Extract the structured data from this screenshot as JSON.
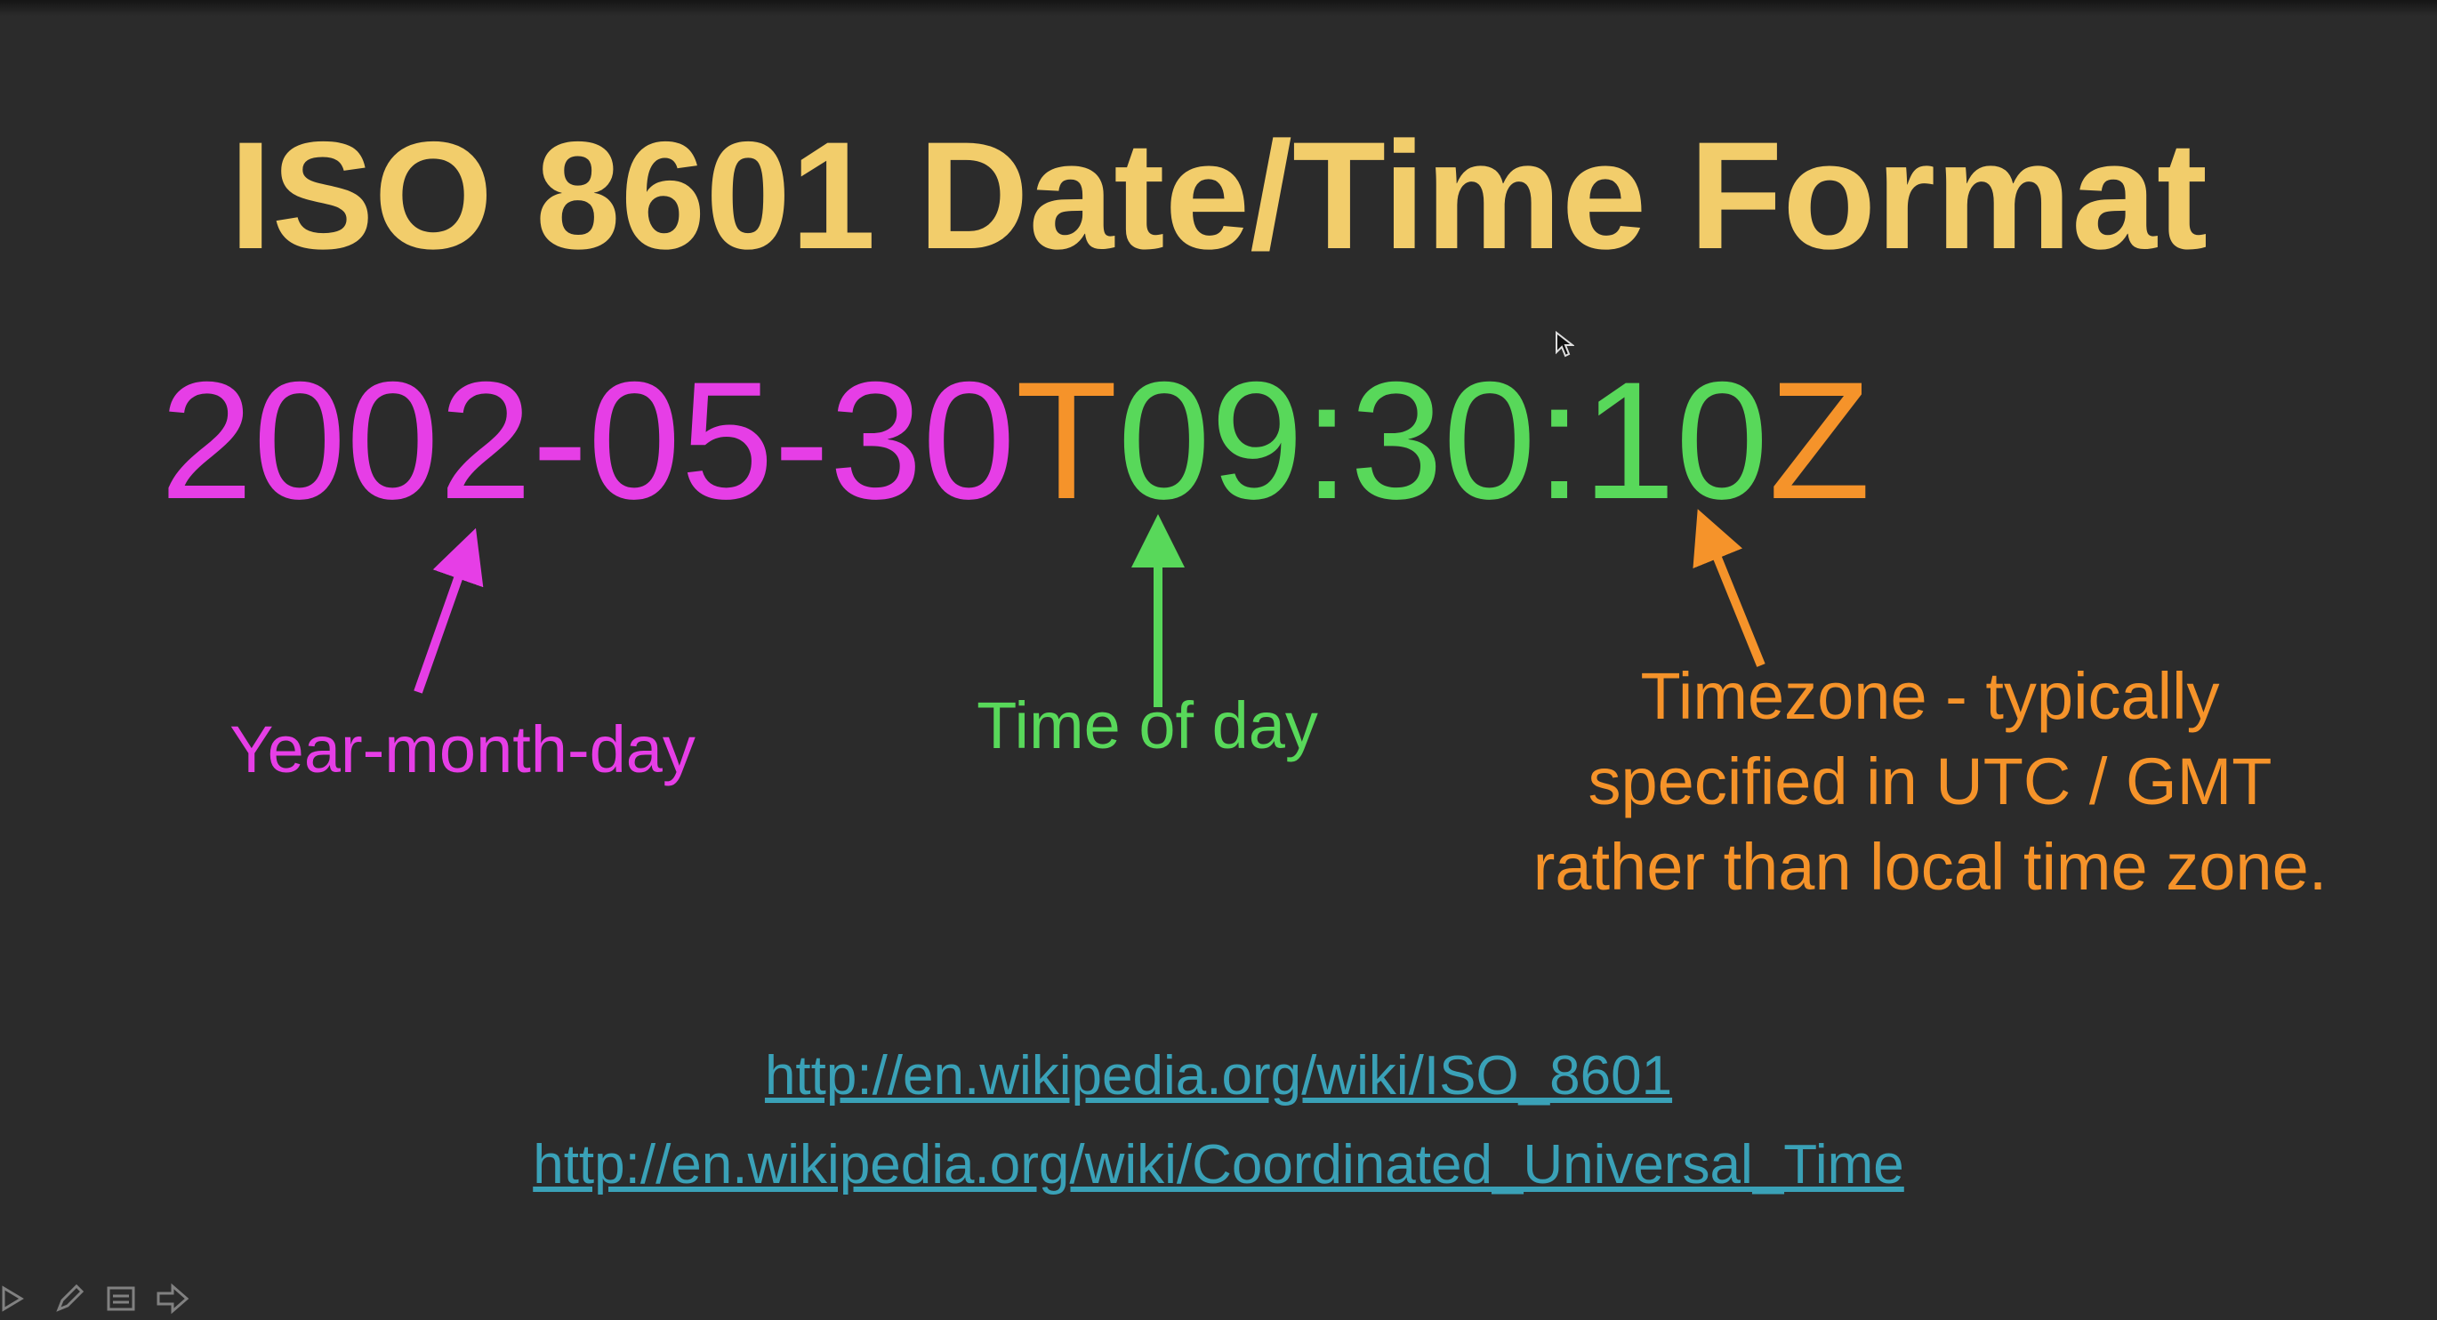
{
  "slide": {
    "title": "ISO 8601 Date/Time Format",
    "timestamp": {
      "date": "2002-05-30",
      "separator": "T",
      "time": "09:30:10",
      "zone": "Z"
    },
    "labels": {
      "date": "Year-month-day",
      "time": "Time of day",
      "timezone": "Timezone - typically specified in UTC / GMT rather than local time zone."
    },
    "links": [
      "http://en.wikipedia.org/wiki/ISO_8601",
      "http://en.wikipedia.org/wiki/Coordinated_Universal_Time"
    ]
  },
  "colors": {
    "background": "#2b2b2b",
    "title": "#f2cd6b",
    "date": "#e63ee6",
    "separator": "#f5932a",
    "time": "#58d85a",
    "zone": "#f5932a",
    "link": "#3aa1b7"
  },
  "toolbar": {
    "icons": [
      "pointer-icon",
      "pen-icon",
      "menu-icon",
      "next-icon"
    ]
  }
}
